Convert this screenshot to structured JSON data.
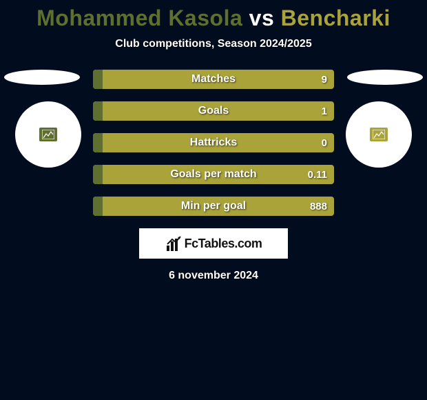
{
  "title": {
    "player1": "Mohammed Kasola",
    "vs": "vs",
    "player2": "Bencharki",
    "player1_color": "#5e6f2f",
    "vs_color": "#ffffff",
    "player2_color": "#a9a33a"
  },
  "subtitle": "Club competitions, Season 2024/2025",
  "bars": {
    "bar_color_main": "#a9a33a",
    "bar_color_left_seg": "#5e6f2f",
    "left_seg_width_pct": 4,
    "rows": [
      {
        "label": "Matches",
        "val_left": "",
        "val_right": "9"
      },
      {
        "label": "Goals",
        "val_left": "",
        "val_right": "1"
      },
      {
        "label": "Hattricks",
        "val_left": "",
        "val_right": "0"
      },
      {
        "label": "Goals per match",
        "val_left": "",
        "val_right": "0.11"
      },
      {
        "label": "Min per goal",
        "val_left": "",
        "val_right": "888"
      }
    ]
  },
  "badge": {
    "left_color": "#5e6f2f",
    "right_color": "#a9a33a"
  },
  "brand": {
    "text": "FcTables.com"
  },
  "date": "6 november 2024",
  "background_color": "#010d1e"
}
